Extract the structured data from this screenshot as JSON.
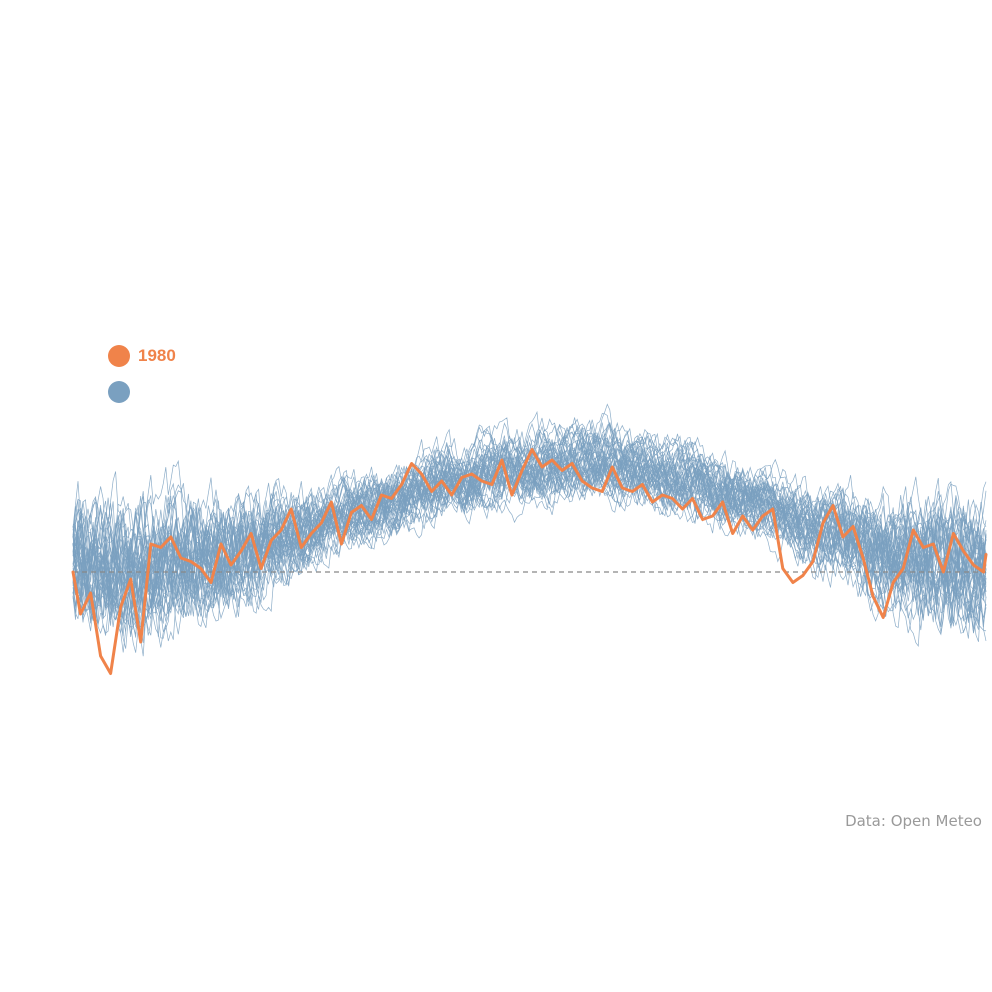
{
  "chart_data": {
    "type": "line",
    "x_unit": "day of year",
    "x_domain": [
      1,
      365
    ],
    "baseline_value": 0,
    "highlight_series": {
      "name": "1980",
      "color": "#f0834a",
      "x": [
        1,
        4,
        8,
        12,
        16,
        20,
        24,
        28,
        32,
        36,
        40,
        44,
        48,
        52,
        56,
        60,
        64,
        68,
        72,
        76,
        80,
        84,
        88,
        92,
        96,
        100,
        104,
        108,
        112,
        116,
        120,
        124,
        128,
        132,
        136,
        140,
        144,
        148,
        152,
        156,
        160,
        164,
        168,
        172,
        176,
        180,
        184,
        188,
        192,
        196,
        200,
        204,
        208,
        212,
        216,
        220,
        224,
        228,
        232,
        236,
        240,
        244,
        248,
        252,
        256,
        260,
        264,
        268,
        272,
        276,
        280,
        284,
        288,
        292,
        296,
        300,
        304,
        308,
        312,
        316,
        320,
        324,
        328,
        332,
        336,
        340,
        344,
        348,
        352,
        356,
        360,
        364,
        365
      ],
      "y": [
        0.0,
        -6.0,
        -3.0,
        -12.0,
        -14.5,
        -5.0,
        -1.0,
        -10.0,
        4.0,
        3.5,
        5.0,
        2.0,
        1.5,
        0.5,
        -1.5,
        4.0,
        1.0,
        3.0,
        5.5,
        0.5,
        4.5,
        6.0,
        9.0,
        3.5,
        5.5,
        7.0,
        10.0,
        4.0,
        8.5,
        9.5,
        7.5,
        11.0,
        10.5,
        12.5,
        15.5,
        14.0,
        11.5,
        13.0,
        11.0,
        13.5,
        14.0,
        13.0,
        12.5,
        16.0,
        11.0,
        14.5,
        17.5,
        15.0,
        16.0,
        14.5,
        15.5,
        13.0,
        12.0,
        11.5,
        15.0,
        12.0,
        11.5,
        12.5,
        10.0,
        11.0,
        10.5,
        9.0,
        10.5,
        7.5,
        8.0,
        10.0,
        5.5,
        8.0,
        6.0,
        8.0,
        9.0,
        0.5,
        -1.5,
        -0.5,
        1.5,
        7.0,
        9.5,
        5.0,
        6.5,
        2.0,
        -3.5,
        -6.5,
        -1.5,
        0.5,
        6.0,
        3.5,
        4.0,
        0.0,
        5.5,
        3.0,
        1.0,
        0.0,
        2.5
      ]
    },
    "background_series": {
      "color": "#7aa0c0",
      "count": 45,
      "typical_shape_y_at": {
        "x": [
          1,
          30,
          60,
          90,
          120,
          150,
          180,
          210,
          240,
          270,
          300,
          330,
          365
        ],
        "y": [
          2.0,
          0.5,
          3.0,
          5.5,
          9.0,
          13.0,
          15.0,
          16.0,
          13.5,
          10.5,
          6.0,
          2.0,
          1.0
        ]
      }
    }
  },
  "legend": {
    "items": [
      {
        "label": "1980",
        "color": "#f0834a"
      },
      {
        "label": "",
        "color": "#7aa0c0"
      }
    ]
  },
  "source": "Data: Open Meteo"
}
